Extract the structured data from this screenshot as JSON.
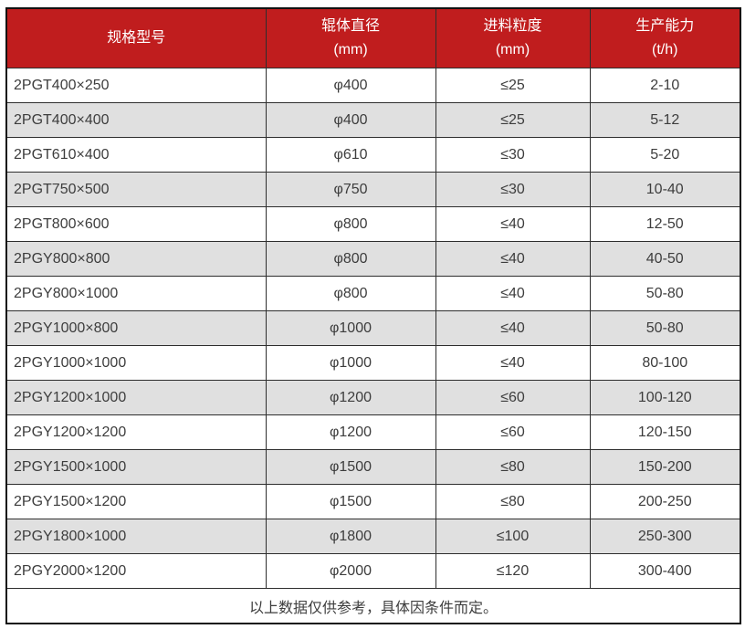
{
  "chart_data": {
    "type": "table",
    "columns": [
      {
        "label": "规格型号",
        "unit": ""
      },
      {
        "label": "辊体直径",
        "unit": "(mm)"
      },
      {
        "label": "进料粒度",
        "unit": "(mm)"
      },
      {
        "label": "生产能力",
        "unit": "(t/h)"
      }
    ],
    "rows": [
      [
        "2PGT400×250",
        "φ400",
        "≤25",
        "2-10"
      ],
      [
        "2PGT400×400",
        "φ400",
        "≤25",
        "5-12"
      ],
      [
        "2PGT610×400",
        "φ610",
        "≤30",
        "5-20"
      ],
      [
        "2PGT750×500",
        "φ750",
        "≤30",
        "10-40"
      ],
      [
        "2PGT800×600",
        "φ800",
        "≤40",
        "12-50"
      ],
      [
        "2PGY800×800",
        "φ800",
        "≤40",
        "40-50"
      ],
      [
        "2PGY800×1000",
        "φ800",
        "≤40",
        "50-80"
      ],
      [
        "2PGY1000×800",
        "φ1000",
        "≤40",
        "50-80"
      ],
      [
        "2PGY1000×1000",
        "φ1000",
        "≤40",
        "80-100"
      ],
      [
        "2PGY1200×1000",
        "φ1200",
        "≤60",
        "100-120"
      ],
      [
        "2PGY1200×1200",
        "φ1200",
        "≤60",
        "120-150"
      ],
      [
        "2PGY1500×1000",
        "φ1500",
        "≤80",
        "150-200"
      ],
      [
        "2PGY1500×1200",
        "φ1500",
        "≤80",
        "200-250"
      ],
      [
        "2PGY1800×1000",
        "φ1800",
        "≤100",
        "250-300"
      ],
      [
        "2PGY2000×1200",
        "φ2000",
        "≤120",
        "300-400"
      ]
    ],
    "footer_note": "以上数据仅供参考，具体因条件而定。"
  },
  "colors": {
    "header_bg": "#C01D1E",
    "header_text": "#FFFFFF",
    "row_bg": "#FFFFFF",
    "row_alt_bg": "#E0E0E0",
    "body_text": "#3D3D3D",
    "border": "#2E2E2E",
    "outer_border": "#111111"
  }
}
